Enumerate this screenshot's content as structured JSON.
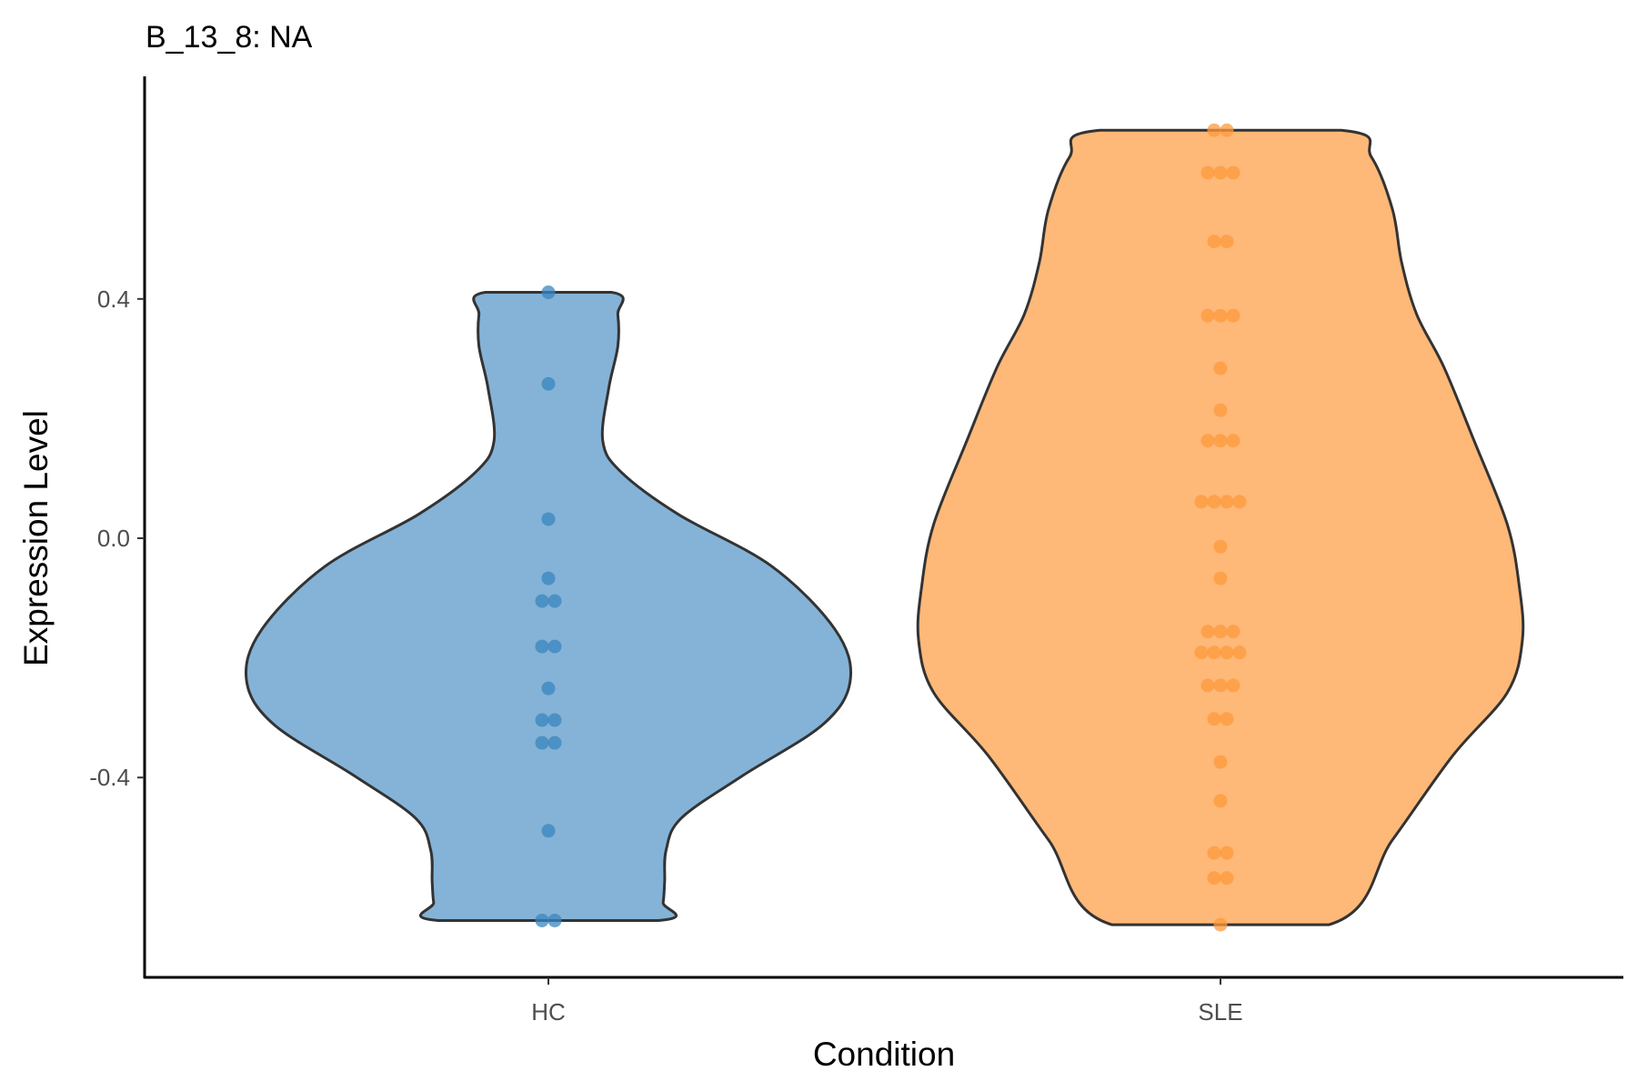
{
  "chart_data": {
    "type": "violin",
    "title": "B_13_8: NA",
    "xlabel": "Condition",
    "ylabel": "Expression Level",
    "categories": [
      "HC",
      "SLE"
    ],
    "ylim": [
      -0.73,
      0.83
    ],
    "yticks": [
      0.4,
      0.0,
      -0.4
    ],
    "ytick_labels": [
      "0.4",
      "0.0",
      "-0.4"
    ],
    "grid": false,
    "legend": "none",
    "series": [
      {
        "name": "HC",
        "fill": "#84b3d7",
        "point_color": "#3a85bf",
        "points": [
          0.411,
          0.258,
          0.032,
          -0.067,
          -0.105,
          -0.105,
          -0.181,
          -0.181,
          -0.251,
          -0.304,
          -0.304,
          -0.342,
          -0.342,
          -0.489,
          -0.639,
          -0.639
        ],
        "density_profile": [
          [
            0.411,
            0.21
          ],
          [
            0.374,
            0.23
          ],
          [
            0.321,
            0.23
          ],
          [
            0.251,
            0.2
          ],
          [
            0.163,
            0.18
          ],
          [
            0.111,
            0.24
          ],
          [
            0.04,
            0.43
          ],
          [
            -0.047,
            0.74
          ],
          [
            -0.153,
            0.95
          ],
          [
            -0.237,
            1.0
          ],
          [
            -0.311,
            0.91
          ],
          [
            -0.398,
            0.64
          ],
          [
            -0.468,
            0.44
          ],
          [
            -0.521,
            0.39
          ],
          [
            -0.574,
            0.385
          ],
          [
            -0.609,
            0.38
          ],
          [
            -0.639,
            0.365
          ]
        ]
      },
      {
        "name": "SLE",
        "fill": "#feb878",
        "point_color": "#fe9a3c",
        "points": [
          0.682,
          0.682,
          0.611,
          0.611,
          0.611,
          0.496,
          0.496,
          0.372,
          0.372,
          0.372,
          0.284,
          0.214,
          0.163,
          0.163,
          0.163,
          0.061,
          0.061,
          0.061,
          0.061,
          -0.014,
          -0.067,
          -0.156,
          -0.156,
          -0.156,
          -0.191,
          -0.191,
          -0.191,
          -0.191,
          -0.246,
          -0.246,
          -0.246,
          -0.302,
          -0.302,
          -0.374,
          -0.439,
          -0.526,
          -0.526,
          -0.568,
          -0.568,
          -0.646
        ],
        "density_profile": [
          [
            0.682,
            0.4
          ],
          [
            0.637,
            0.5
          ],
          [
            0.549,
            0.57
          ],
          [
            0.461,
            0.6
          ],
          [
            0.374,
            0.65
          ],
          [
            0.286,
            0.74
          ],
          [
            0.163,
            0.84
          ],
          [
            0.023,
            0.95
          ],
          [
            -0.082,
            0.99
          ],
          [
            -0.17,
            1.0
          ],
          [
            -0.258,
            0.95
          ],
          [
            -0.363,
            0.77
          ],
          [
            -0.504,
            0.57
          ],
          [
            -0.646,
            0.36
          ]
        ]
      }
    ]
  }
}
